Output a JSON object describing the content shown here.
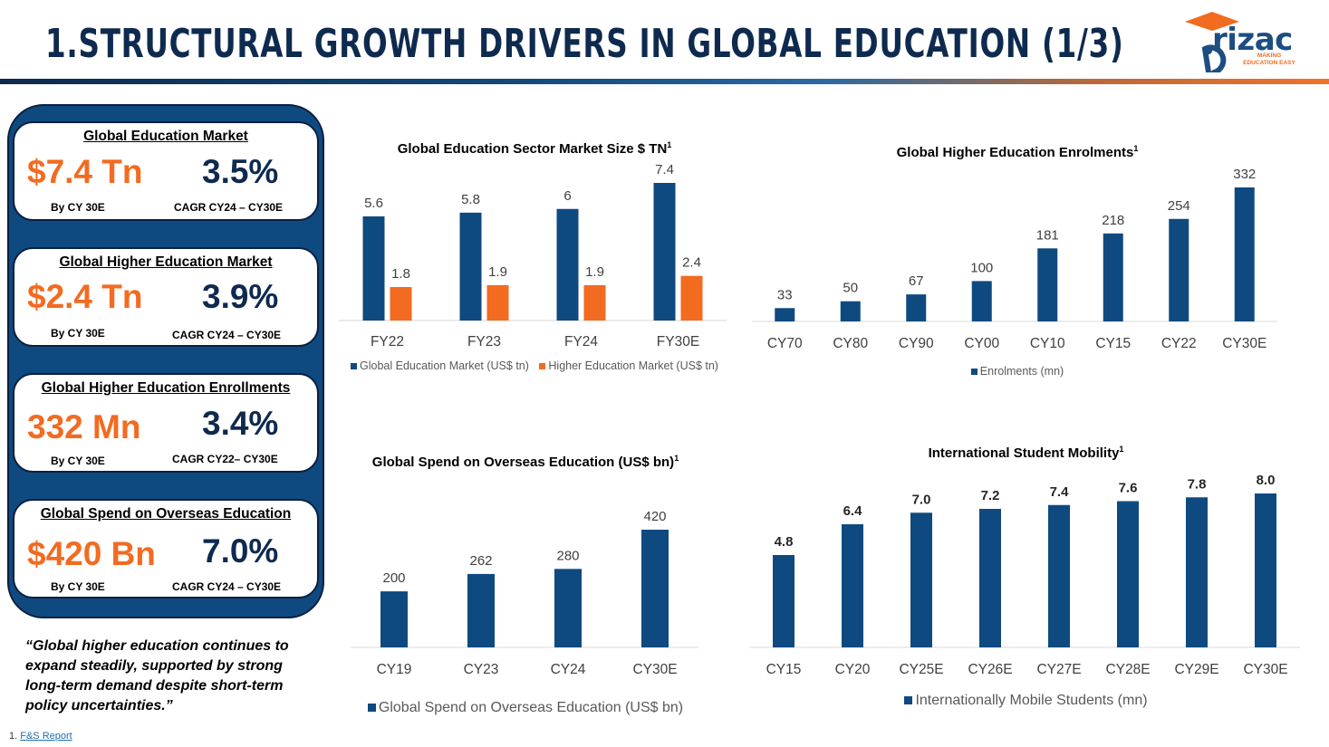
{
  "header": {
    "title": "1.STRUCTURAL GROWTH DRIVERS IN GLOBAL EDUCATION (1/3)",
    "logo": {
      "name": "rizac",
      "tagline_line1": "MAKING",
      "tagline_line2": "EDUCATION EASY"
    }
  },
  "kpis": [
    {
      "title": "Global Education Market",
      "value": "$7.4 Tn",
      "cagr": "3.5%",
      "sub_left": "By CY 30E",
      "sub_right": "CAGR CY24 – CY30E"
    },
    {
      "title": "Global Higher Education Market",
      "value": "$2.4 Tn",
      "cagr": "3.9%",
      "sub_left": "By CY 30E",
      "sub_right": "CAGR CY24 – CY30E"
    },
    {
      "title": "Global Higher Education Enrollments",
      "value": "332 Mn",
      "cagr": "3.4%",
      "sub_left": "By CY 30E",
      "sub_right": "CAGR CY22– CY30E"
    },
    {
      "title": "Global Spend on Overseas Education",
      "value": "$420 Bn",
      "cagr": "7.0%",
      "sub_left": "By CY 30E",
      "sub_right": "CAGR CY24 – CY30E"
    }
  ],
  "quote": "“Global higher education continues to expand steadily, supported by strong long-term demand despite short-term policy uncertainties.”",
  "footnote": {
    "number": "1.",
    "link_text": "F&S Report"
  },
  "colors": {
    "navy": "#0e4a80",
    "orange": "#f26b21",
    "dark": "#0e2a4f"
  },
  "chart_data": [
    {
      "type": "bar",
      "title": "Global Education Sector Market Size $ TN",
      "title_sup": "1",
      "categories": [
        "FY22",
        "FY23",
        "FY24",
        "FY30E"
      ],
      "series": [
        {
          "name": "Global Education Market (US$ tn)",
          "values": [
            5.6,
            5.8,
            6,
            7.4
          ],
          "labels": [
            "5.6",
            "5.8",
            "6",
            "7.4"
          ],
          "color": "#0e4a80"
        },
        {
          "name": "Higher Education Market (US$ tn)",
          "values": [
            1.8,
            1.9,
            1.9,
            2.4
          ],
          "labels": [
            "1.8",
            "1.9",
            "1.9",
            "2.4"
          ],
          "color": "#f26b21"
        }
      ],
      "ylim": [
        0,
        7.4
      ],
      "legend": "bottom"
    },
    {
      "type": "bar",
      "title": "Global Higher Education Enrolments",
      "title_sup": "1",
      "categories": [
        "CY70",
        "CY80",
        "CY90",
        "CY00",
        "CY10",
        "CY15",
        "CY22",
        "CY30E"
      ],
      "series": [
        {
          "name": "Enrolments (mn)",
          "values": [
            33,
            50,
            67,
            100,
            181,
            218,
            254,
            332
          ],
          "labels": [
            "33",
            "50",
            "67",
            "100",
            "181",
            "218",
            "254",
            "332"
          ],
          "color": "#0e4a80"
        }
      ],
      "ylim": [
        0,
        332
      ],
      "legend": "bottom"
    },
    {
      "type": "bar",
      "title": "Global Spend on Overseas Education (US$ bn)",
      "title_sup": "1",
      "categories": [
        "CY19",
        "CY23",
        "CY24",
        "CY30E"
      ],
      "series": [
        {
          "name": "Global Spend on Overseas Education (US$ bn)",
          "values": [
            200,
            262,
            280,
            420
          ],
          "labels": [
            "200",
            "262",
            "280",
            "420"
          ],
          "color": "#0e4a80"
        }
      ],
      "ylim": [
        0,
        420
      ],
      "legend": "bottom"
    },
    {
      "type": "bar",
      "title": "International Student Mobility",
      "title_sup": "1",
      "categories": [
        "CY15",
        "CY20",
        "CY25E",
        "CY26E",
        "CY27E",
        "CY28E",
        "CY29E",
        "CY30E"
      ],
      "series": [
        {
          "name": "Internationally Mobile Students (mn)",
          "values": [
            4.8,
            6.4,
            7.0,
            7.2,
            7.4,
            7.6,
            7.8,
            8.0
          ],
          "labels": [
            "4.8",
            "6.4",
            "7.0",
            "7.2",
            "7.4",
            "7.6",
            "7.8",
            "8.0"
          ],
          "color": "#0e4a80"
        }
      ],
      "ylim": [
        0,
        8.0
      ],
      "legend": "bottom"
    }
  ]
}
